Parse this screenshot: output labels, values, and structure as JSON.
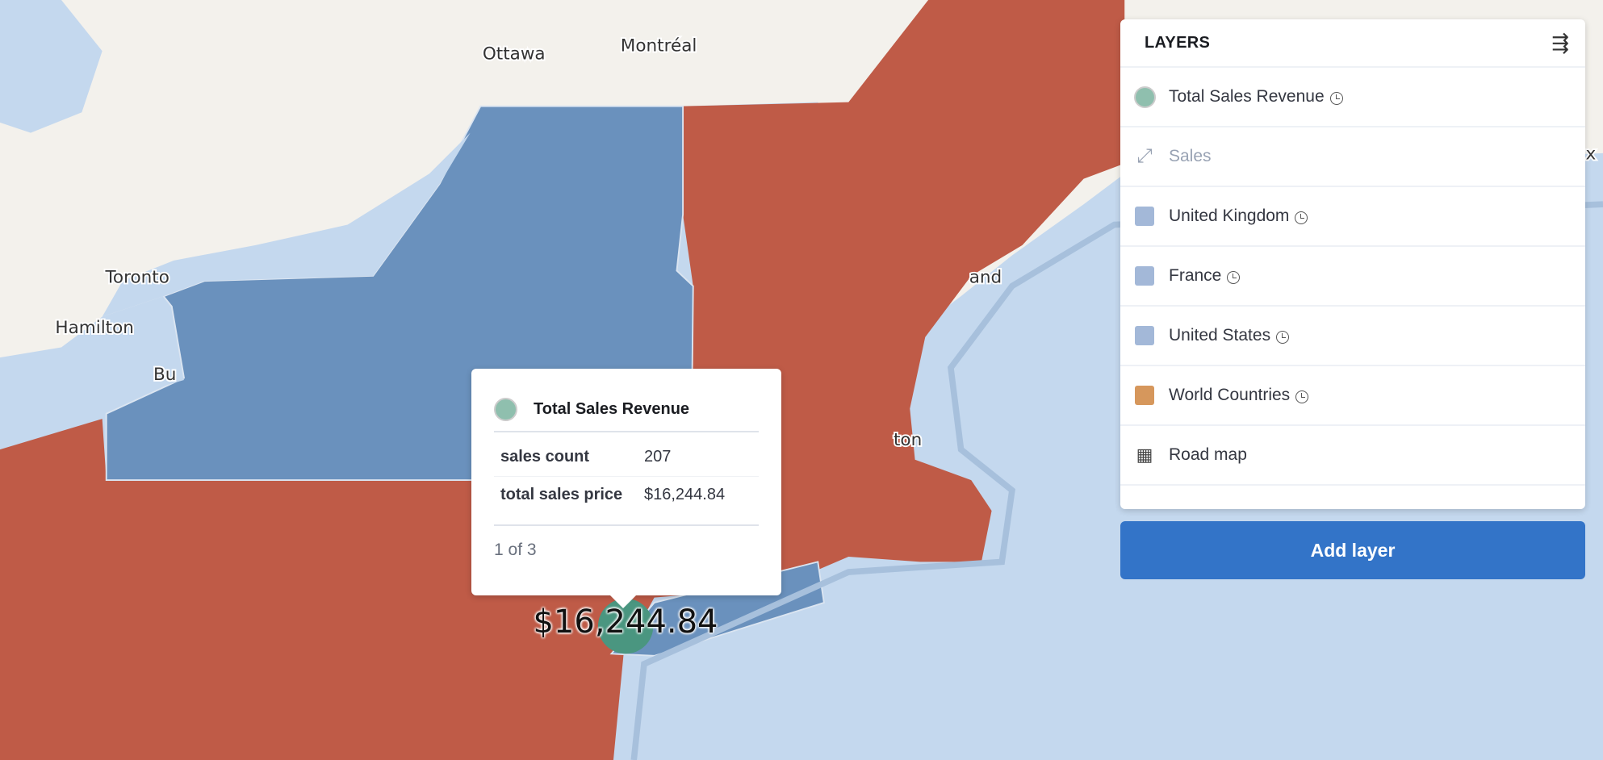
{
  "map": {
    "colors": {
      "water": "#c4d8ee",
      "land": "#f3f1ec",
      "us_states": "#bf5b47",
      "ny_region": "#6a91bd",
      "point": "#4a9680"
    },
    "labels": {
      "ottawa": "Ottawa",
      "montreal": "Montréal",
      "toronto": "Toronto",
      "hamilton": "Hamilton",
      "buffalo": "Bu",
      "partial_and": "and",
      "partial_ton": "ton",
      "partial_x": "x"
    },
    "point_label": "$16,244.84"
  },
  "layers_panel": {
    "title": "LAYERS",
    "collapse_icon": "collapse-right-icon",
    "items": [
      {
        "label": "Total Sales Revenue",
        "icon": "circle",
        "color": "#8fbfae",
        "time_icon": true
      },
      {
        "label": "Sales",
        "icon": "expand-arrows-icon",
        "muted": true
      },
      {
        "label": "United Kingdom",
        "icon": "square",
        "color": "#a3b8d8",
        "time_icon": true
      },
      {
        "label": "France",
        "icon": "square",
        "color": "#a3b8d8",
        "time_icon": true
      },
      {
        "label": "United States",
        "icon": "square",
        "color": "#a3b8d8",
        "time_icon": true
      },
      {
        "label": "World Countries",
        "icon": "square",
        "color": "#d6975c",
        "time_icon": true
      },
      {
        "label": "Road map",
        "icon": "grid-icon"
      }
    ],
    "add_layer_label": "Add layer"
  },
  "tooltip": {
    "title": "Total Sales Revenue",
    "rows": [
      {
        "key": "sales count",
        "value": "207"
      },
      {
        "key": "total sales price",
        "value": "$16,244.84"
      }
    ],
    "pager": "1 of 3"
  }
}
